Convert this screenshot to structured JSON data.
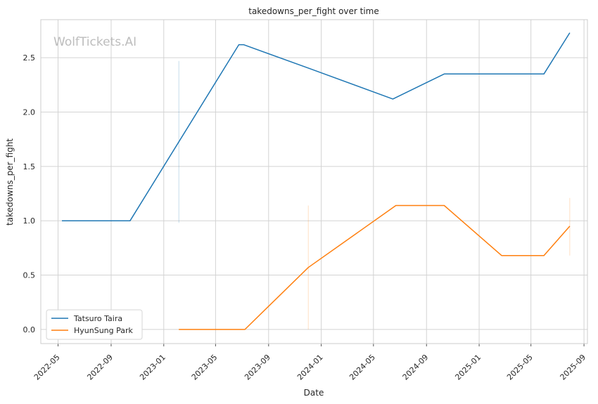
{
  "watermark": "WolfTickets.AI",
  "chart_data": {
    "type": "line",
    "title": "takedowns_per_fight over time",
    "xlabel": "Date",
    "ylabel": "takedowns_per_fight",
    "xlim": [
      "2022-03-22",
      "2025-09-09"
    ],
    "ylim": [
      -0.13,
      2.85
    ],
    "x_ticks": [
      "2022-05",
      "2022-09",
      "2023-01",
      "2023-05",
      "2023-09",
      "2024-01",
      "2024-05",
      "2024-09",
      "2025-01",
      "2025-05",
      "2025-09"
    ],
    "y_ticks": [
      0.0,
      0.5,
      1.0,
      1.5,
      2.0,
      2.5
    ],
    "y_tick_labels": [
      "0.0",
      "0.5",
      "1.0",
      "1.5",
      "2.0",
      "2.5"
    ],
    "grid": true,
    "legend_position": "lower-left",
    "series": [
      {
        "name": "Tatsuro Taira",
        "color": "#1f77b4",
        "points": [
          [
            "2022-05-10",
            1.0
          ],
          [
            "2022-10-15",
            1.0
          ],
          [
            "2023-06-24",
            2.62
          ],
          [
            "2023-07-05",
            2.62
          ],
          [
            "2023-12-05",
            2.4
          ],
          [
            "2024-06-15",
            2.12
          ],
          [
            "2024-10-12",
            2.35
          ],
          [
            "2025-05-31",
            2.35
          ],
          [
            "2025-07-30",
            2.73
          ]
        ],
        "error_bars": [
          {
            "x": "2023-02-05",
            "low": 0.98,
            "high": 2.47
          }
        ]
      },
      {
        "name": "HyunSung Park",
        "color": "#ff7f0e",
        "points": [
          [
            "2023-02-05",
            0.0
          ],
          [
            "2023-07-08",
            0.0
          ],
          [
            "2023-12-02",
            0.57
          ],
          [
            "2024-06-22",
            1.14
          ],
          [
            "2024-10-12",
            1.14
          ],
          [
            "2025-02-22",
            0.68
          ],
          [
            "2025-05-31",
            0.68
          ],
          [
            "2025-07-30",
            0.95
          ]
        ],
        "error_bars": [
          {
            "x": "2023-12-02",
            "low": 0.0,
            "high": 1.14
          },
          {
            "x": "2025-07-30",
            "low": 0.68,
            "high": 1.21
          }
        ]
      }
    ]
  }
}
